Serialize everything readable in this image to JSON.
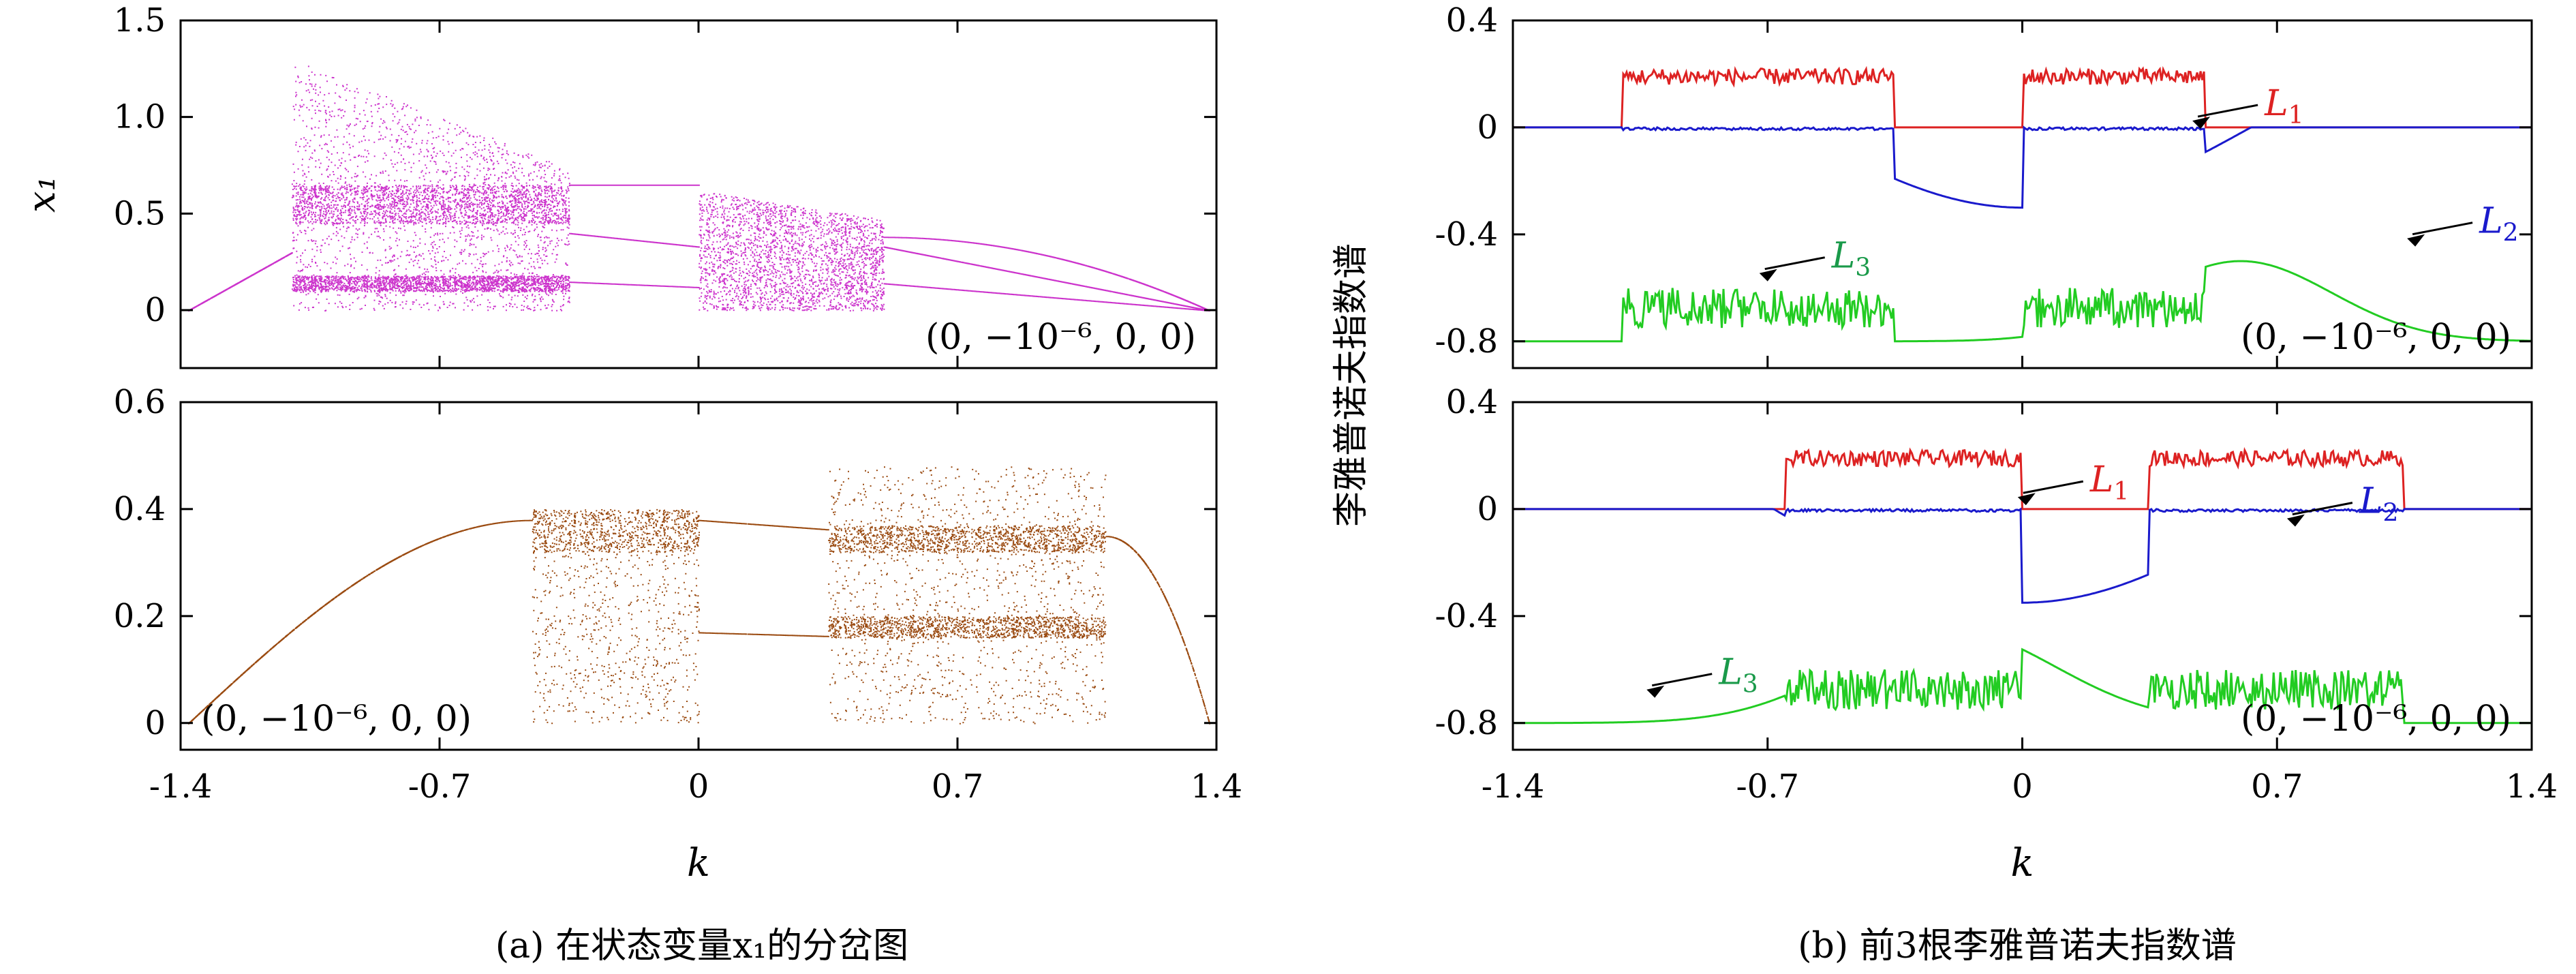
{
  "figure": {
    "caption_a": "(a) 在状态变量x₁的分岔图",
    "caption_b": "(b) 前3根李雅普诺夫指数谱"
  },
  "chart_data": [
    {
      "id": "a-top",
      "type": "scatter",
      "title": "",
      "xlabel": "",
      "ylabel": "x₁",
      "xlim": [
        -1.4,
        1.4
      ],
      "ylim": [
        -0.3,
        1.5
      ],
      "yticks": [
        "0",
        "0.5",
        "1.0",
        "1.5"
      ],
      "ytick_values": [
        0,
        0.5,
        1.0,
        1.5
      ],
      "initial_condition": "(0, −10⁻⁶, 0, 0)",
      "initial_condition_position": "bottom-right",
      "series": [
        {
          "color": "#cc33cc",
          "description_regions": [
            {
              "x": [
                -1.38,
                -1.1
              ],
              "branches": [
                [
                  0.0,
                  0.35
                ]
              ]
            },
            {
              "x": [
                -1.1,
                -0.35
              ],
              "chaos": [
                0.0,
                1.3
              ]
            },
            {
              "x": [
                -0.35,
                0.0
              ],
              "period": [
                0.12,
                0.4,
                0.65
              ]
            },
            {
              "x": [
                0.0,
                0.5
              ],
              "chaos": [
                -0.02,
                0.62
              ]
            },
            {
              "x": [
                0.5,
                1.38
              ],
              "branches": [
                [
                  0.0,
                  0.38
                ]
              ]
            }
          ]
        }
      ],
      "color": "#cc33cc"
    },
    {
      "id": "a-bottom",
      "type": "scatter",
      "title": "",
      "xlabel": "k",
      "ylabel": "",
      "xlim": [
        -1.4,
        1.4
      ],
      "ylim": [
        -0.05,
        0.6
      ],
      "xticks": [
        "-1.4",
        "-0.7",
        "0",
        "0.7",
        "1.4"
      ],
      "xtick_values": [
        -1.4,
        -0.7,
        0,
        0.7,
        1.4
      ],
      "yticks": [
        "0",
        "0.2",
        "0.4",
        "0.6"
      ],
      "ytick_values": [
        0,
        0.2,
        0.4,
        0.6
      ],
      "initial_condition": "(0, −10⁻⁶, 0, 0)",
      "initial_condition_position": "bottom-left",
      "color": "#9a4a10"
    },
    {
      "id": "b-top",
      "type": "line",
      "title": "",
      "xlabel": "",
      "ylabel": "李雅普诺夫指数谱",
      "xlim": [
        -1.4,
        1.4
      ],
      "ylim": [
        -0.9,
        0.4
      ],
      "yticks": [
        "0.4",
        "0",
        "-0.4",
        "-0.8"
      ],
      "ytick_values": [
        0.4,
        0,
        -0.4,
        -0.8
      ],
      "initial_condition": "(0, −10⁻⁶, 0, 0)",
      "initial_condition_position": "bottom-right",
      "series": [
        {
          "name": "L1",
          "color": "#dd2222"
        },
        {
          "name": "L2",
          "color": "#1a1acc"
        },
        {
          "name": "L3",
          "color": "#22cc22"
        }
      ],
      "annotations": [
        {
          "label": "L",
          "sub": "1",
          "color": "#dd2222",
          "x": 0.46,
          "y": 0.02
        },
        {
          "label": "L",
          "sub": "2",
          "color": "#1a1acc",
          "x": 1.05,
          "y": -0.42
        },
        {
          "label": "L",
          "sub": "3",
          "color": "#1a9a4a",
          "x": -0.73,
          "y": -0.55
        }
      ]
    },
    {
      "id": "b-bottom",
      "type": "line",
      "title": "",
      "xlabel": "k",
      "ylabel": "",
      "xlim": [
        -1.4,
        1.4
      ],
      "ylim": [
        -0.9,
        0.4
      ],
      "xticks": [
        "-1.4",
        "-0.7",
        "0",
        "0.7",
        "1.4"
      ],
      "xtick_values": [
        -1.4,
        -0.7,
        0,
        0.7,
        1.4
      ],
      "yticks": [
        "0.4",
        "0",
        "-0.4",
        "-0.8"
      ],
      "ytick_values": [
        0.4,
        0,
        -0.4,
        -0.8
      ],
      "initial_condition": "(0, −10⁻⁶, 0, 0)",
      "initial_condition_position": "bottom-right",
      "series": [
        {
          "name": "L1",
          "color": "#dd2222"
        },
        {
          "name": "L2",
          "color": "#1a1acc"
        },
        {
          "name": "L3",
          "color": "#22cc22"
        }
      ],
      "annotations": [
        {
          "label": "L",
          "sub": "1",
          "color": "#dd2222",
          "x": -0.02,
          "y": 0.04
        },
        {
          "label": "L",
          "sub": "2",
          "color": "#1a1acc",
          "x": 0.72,
          "y": -0.04
        },
        {
          "label": "L",
          "sub": "3",
          "color": "#1a9a4a",
          "x": -1.04,
          "y": -0.68
        }
      ]
    }
  ]
}
